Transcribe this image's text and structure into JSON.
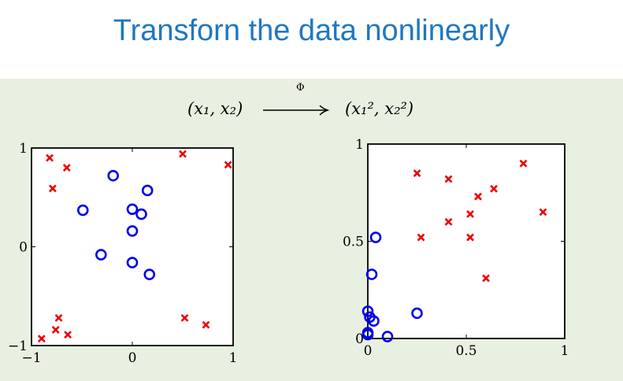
{
  "title": "Transforn the data nonlinearly",
  "mapping": {
    "input": "(x₁, x₂)",
    "symbol": "Φ",
    "output": "(x₁², x₂²)"
  },
  "colors": {
    "title": "#1f78c1",
    "panel": "#e8f0e2",
    "circle": "#0000ee",
    "cross": "#ee0000"
  },
  "chart_data": [
    {
      "type": "scatter",
      "xlim": [
        -1,
        1
      ],
      "ylim": [
        -1,
        1
      ],
      "xticks": [
        "−1",
        "0",
        "1"
      ],
      "yticks": [
        "−1",
        "0",
        "1"
      ],
      "xtick_values": [
        -1,
        0,
        1
      ],
      "ytick_values": [
        -1,
        0,
        1
      ],
      "series": [
        {
          "marker": "circle",
          "color": "#0000ee",
          "points": [
            [
              -0.19,
              0.72
            ],
            [
              0.15,
              0.57
            ],
            [
              -0.49,
              0.37
            ],
            [
              0.0,
              0.38
            ],
            [
              0.09,
              0.33
            ],
            [
              0.0,
              0.16
            ],
            [
              -0.31,
              -0.08
            ],
            [
              0.0,
              -0.16
            ],
            [
              0.17,
              -0.28
            ]
          ]
        },
        {
          "marker": "x",
          "color": "#ee0000",
          "points": [
            [
              -0.82,
              0.9
            ],
            [
              -0.65,
              0.8
            ],
            [
              -0.79,
              0.59
            ],
            [
              0.5,
              0.94
            ],
            [
              0.95,
              0.83
            ],
            [
              -0.73,
              -0.72
            ],
            [
              -0.76,
              -0.84
            ],
            [
              -0.64,
              -0.89
            ],
            [
              -0.9,
              -0.93
            ],
            [
              0.52,
              -0.72
            ],
            [
              0.73,
              -0.79
            ]
          ]
        }
      ]
    },
    {
      "type": "scatter",
      "xlim": [
        0,
        1
      ],
      "ylim": [
        0,
        1
      ],
      "xticks": [
        "0",
        "0.5",
        "1"
      ],
      "yticks": [
        "0",
        "0.5",
        "1"
      ],
      "xtick_values": [
        0,
        0.5,
        1
      ],
      "ytick_values": [
        0,
        0.5,
        1
      ],
      "series": [
        {
          "marker": "circle",
          "color": "#0000ee",
          "points": [
            [
              0.04,
              0.52
            ],
            [
              0.02,
              0.33
            ],
            [
              0.0,
              0.14
            ],
            [
              0.01,
              0.11
            ],
            [
              0.03,
              0.09
            ],
            [
              0.25,
              0.13
            ],
            [
              0.0,
              0.03
            ],
            [
              0.0,
              0.02
            ],
            [
              0.1,
              0.01
            ]
          ]
        },
        {
          "marker": "x",
          "color": "#ee0000",
          "points": [
            [
              0.25,
              0.85
            ],
            [
              0.41,
              0.82
            ],
            [
              0.79,
              0.9
            ],
            [
              0.64,
              0.77
            ],
            [
              0.56,
              0.73
            ],
            [
              0.52,
              0.64
            ],
            [
              0.89,
              0.65
            ],
            [
              0.41,
              0.6
            ],
            [
              0.27,
              0.52
            ],
            [
              0.52,
              0.52
            ],
            [
              0.6,
              0.31
            ]
          ]
        }
      ]
    }
  ]
}
